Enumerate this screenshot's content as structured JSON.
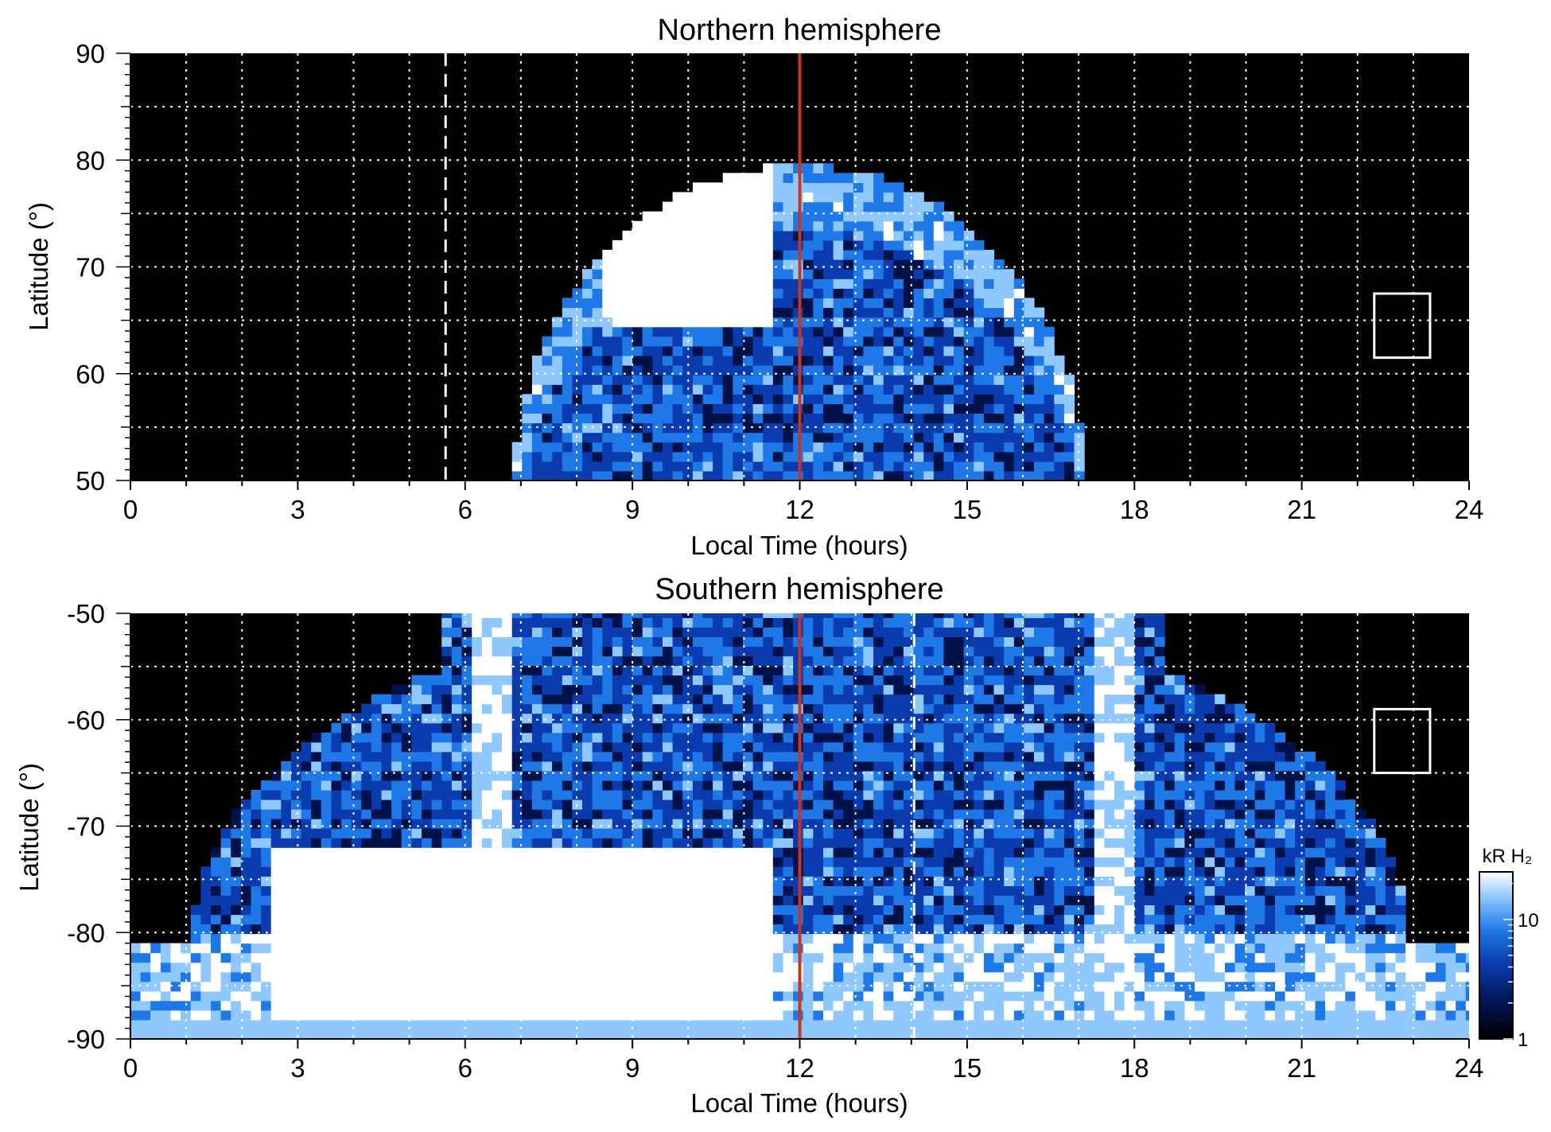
{
  "chart_data": [
    {
      "type": "heatmap",
      "title": "Northern hemisphere",
      "xlabel": "Local Time (hours)",
      "ylabel": "Latitude (°)",
      "xlim": [
        0,
        24
      ],
      "ylim": [
        50,
        90
      ],
      "x_ticks": [
        0,
        3,
        6,
        9,
        12,
        15,
        18,
        21,
        24
      ],
      "x_tick_labels": [
        "0",
        "3",
        "6",
        "9",
        "12",
        "15",
        "18",
        "21",
        "24"
      ],
      "y_ticks": [
        50,
        60,
        70,
        80,
        90
      ],
      "y_tick_labels": [
        "50",
        "60",
        "70",
        "80",
        "90"
      ],
      "grid": true,
      "background": "#000000",
      "coverage": {
        "lt_min": 7.0,
        "lt_max": 17.2,
        "lat_min": 50,
        "lat_max": 79.5,
        "center_lt": 12.0
      },
      "bright_region": {
        "lt_start": 8.5,
        "lt_end": 11.5,
        "lat_min": 64,
        "lat_max": 79,
        "intensity_kR": 25
      },
      "reference_lines": [
        {
          "x": 12.0,
          "style": "solid",
          "color": "#c8361b"
        },
        {
          "x": 5.65,
          "style": "dashed",
          "color": "#ffffff"
        }
      ],
      "box": {
        "x0": 22.3,
        "x1": 23.3,
        "y0": 61.5,
        "y1": 67.5
      }
    },
    {
      "type": "heatmap",
      "title": "Southern hemisphere",
      "xlabel": "Local Time (hours)",
      "ylabel": "Latitude (°)",
      "xlim": [
        0,
        24
      ],
      "ylim": [
        -90,
        -50
      ],
      "x_ticks": [
        0,
        3,
        6,
        9,
        12,
        15,
        18,
        21,
        24
      ],
      "x_tick_labels": [
        "0",
        "3",
        "6",
        "9",
        "12",
        "15",
        "18",
        "21",
        "24"
      ],
      "y_ticks": [
        -90,
        -80,
        -70,
        -60,
        -50
      ],
      "y_tick_labels": [
        "-90",
        "-80",
        "-70",
        "-60",
        "-50"
      ],
      "grid": true,
      "background": "#000000",
      "coverage": {
        "lt_min": 0.0,
        "lt_max": 24.0,
        "lat_top": -50,
        "dark_side_lat": -81
      },
      "bright_region": {
        "lt_start": 2.5,
        "lt_end": 11.5,
        "lat_min": -90,
        "lat_max": -72,
        "intensity_kR": 25
      },
      "reference_lines": [
        {
          "x": 12.0,
          "style": "solid",
          "color": "#c8361b"
        },
        {
          "x": 14.05,
          "style": "dashed",
          "color": "#ffffff"
        }
      ],
      "box": {
        "x0": 22.3,
        "x1": 23.3,
        "y0": -65,
        "y1": -59
      }
    }
  ],
  "colorbar": {
    "label": "kR H₂",
    "scale": "log",
    "range": [
      1,
      25
    ],
    "ticks": [
      1,
      10
    ],
    "tick_labels": [
      "1",
      "10"
    ],
    "colors": [
      "#000000",
      "#00124a",
      "#0a3cb0",
      "#1e78e8",
      "#8ec8ff",
      "#ffffff"
    ]
  }
}
